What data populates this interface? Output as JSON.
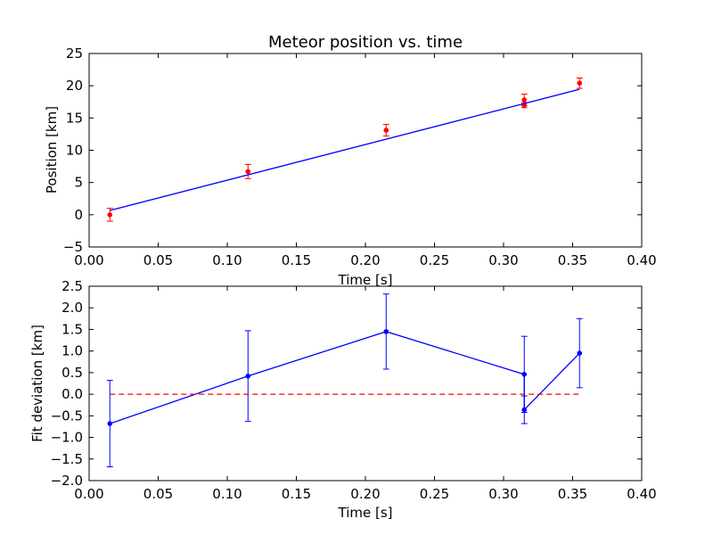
{
  "colors": {
    "data_points": "#ff0000",
    "fit_line": "#0000ff",
    "residuals": "#0000ff",
    "zero_line": "#ff0000",
    "background": "#ffffff",
    "axes": "#000000"
  },
  "chart_data": [
    {
      "type": "scatter",
      "title": "Meteor position vs. time",
      "xlabel": "Time [s]",
      "ylabel": "Position [km]",
      "xlim": [
        0.0,
        0.4
      ],
      "ylim": [
        -5,
        25
      ],
      "xticks": [
        "0.00",
        "0.05",
        "0.10",
        "0.15",
        "0.20",
        "0.25",
        "0.30",
        "0.35",
        "0.40"
      ],
      "yticks": [
        "−5",
        "0",
        "5",
        "10",
        "15",
        "20",
        "25"
      ],
      "grid": false,
      "series": [
        {
          "style": "points-with-errorbars",
          "color": "#ff0000",
          "x": [
            0.015,
            0.115,
            0.215,
            0.315,
            0.315,
            0.355
          ],
          "y": [
            0.0,
            6.7,
            13.1,
            17.8,
            17.0,
            20.4
          ],
          "yerr": [
            1.0,
            1.1,
            0.9,
            0.9,
            0.4,
            0.8
          ]
        },
        {
          "style": "line",
          "color": "#0000ff",
          "x": [
            0.015,
            0.355
          ],
          "y": [
            0.67,
            19.45
          ]
        }
      ]
    },
    {
      "type": "line",
      "title": "",
      "xlabel": "Time [s]",
      "ylabel": "Fit deviation [km]",
      "xlim": [
        0.0,
        0.4
      ],
      "ylim": [
        -2.0,
        2.5
      ],
      "xticks": [
        "0.00",
        "0.05",
        "0.10",
        "0.15",
        "0.20",
        "0.25",
        "0.30",
        "0.35",
        "0.40"
      ],
      "yticks": [
        "−2.0",
        "−1.5",
        "−1.0",
        "−0.5",
        "0.0",
        "0.5",
        "1.0",
        "1.5",
        "2.0",
        "2.5"
      ],
      "grid": false,
      "series": [
        {
          "style": "line-points-with-errorbars",
          "color": "#0000ff",
          "x": [
            0.015,
            0.115,
            0.215,
            0.315,
            0.315,
            0.355
          ],
          "y": [
            -0.68,
            0.42,
            1.45,
            0.46,
            -0.36,
            0.95
          ],
          "yerr": [
            1.0,
            1.05,
            0.87,
            0.88,
            0.32,
            0.8
          ]
        },
        {
          "style": "dashed-line",
          "color": "#ff0000",
          "x": [
            0.015,
            0.355
          ],
          "y": [
            0.0,
            0.0
          ]
        }
      ]
    }
  ]
}
